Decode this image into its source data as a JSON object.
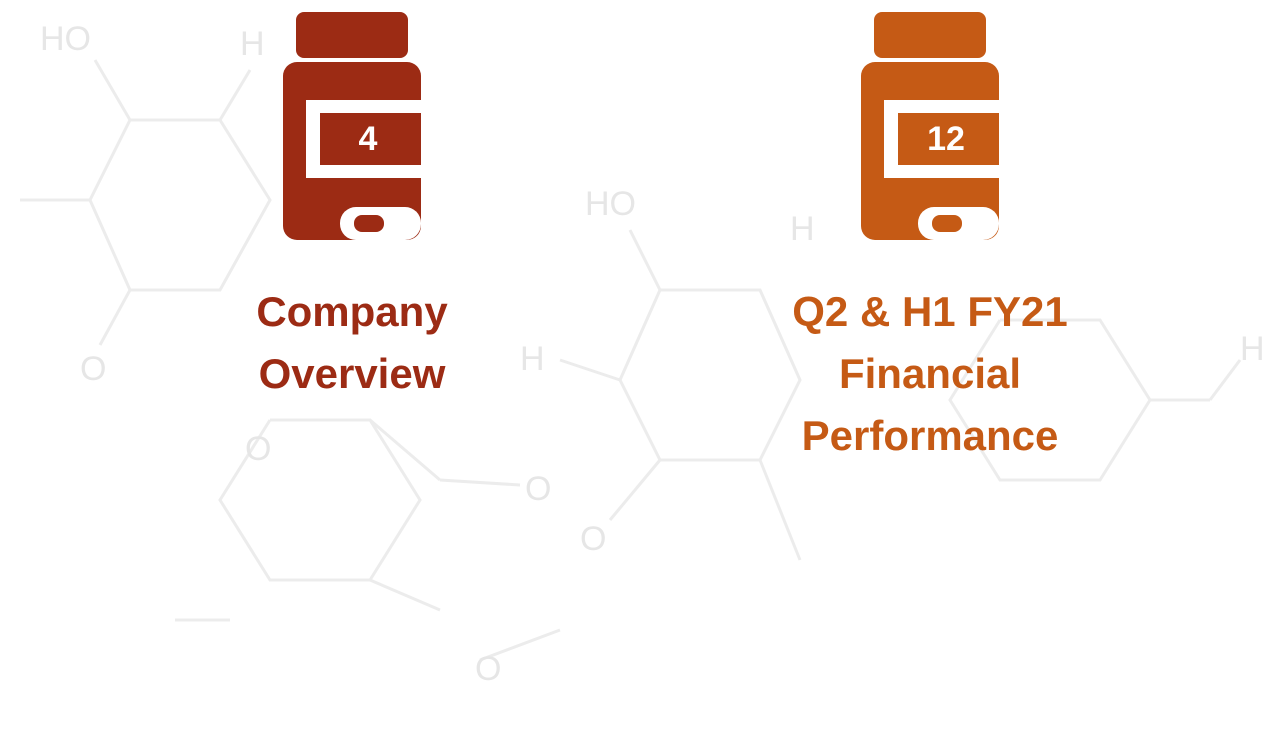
{
  "items": [
    {
      "number": 4,
      "label_lines": [
        "Company",
        "Overview"
      ],
      "color": "#9c2b14"
    },
    {
      "number": 12,
      "label_lines": [
        "Q2 & H1 FY21",
        "Financial",
        "Performance"
      ],
      "color": "#c55a15"
    }
  ]
}
